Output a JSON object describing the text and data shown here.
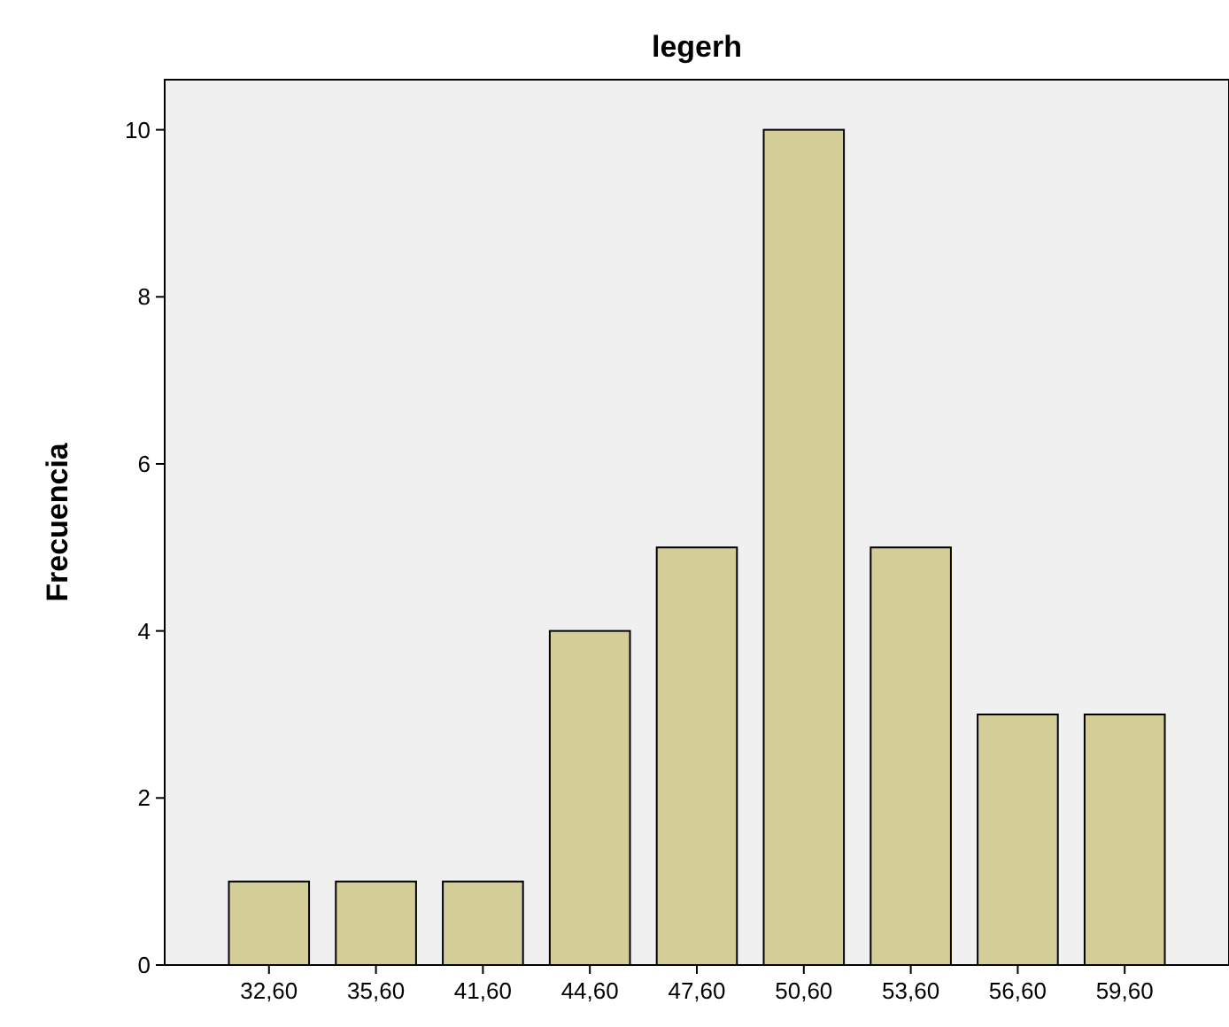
{
  "chart_data": {
    "type": "bar",
    "title": "legerh",
    "ylabel": "Frecuencia",
    "categories": [
      "32,60",
      "35,60",
      "41,60",
      "44,60",
      "47,60",
      "50,60",
      "53,60",
      "56,60",
      "59,60"
    ],
    "values": [
      1,
      1,
      1,
      4,
      5,
      10,
      5,
      3,
      3
    ],
    "color": "#d3ce97",
    "ylim": [
      0,
      10.6
    ],
    "yticks": [
      0,
      2,
      4,
      6,
      8,
      10
    ],
    "grid": false
  }
}
